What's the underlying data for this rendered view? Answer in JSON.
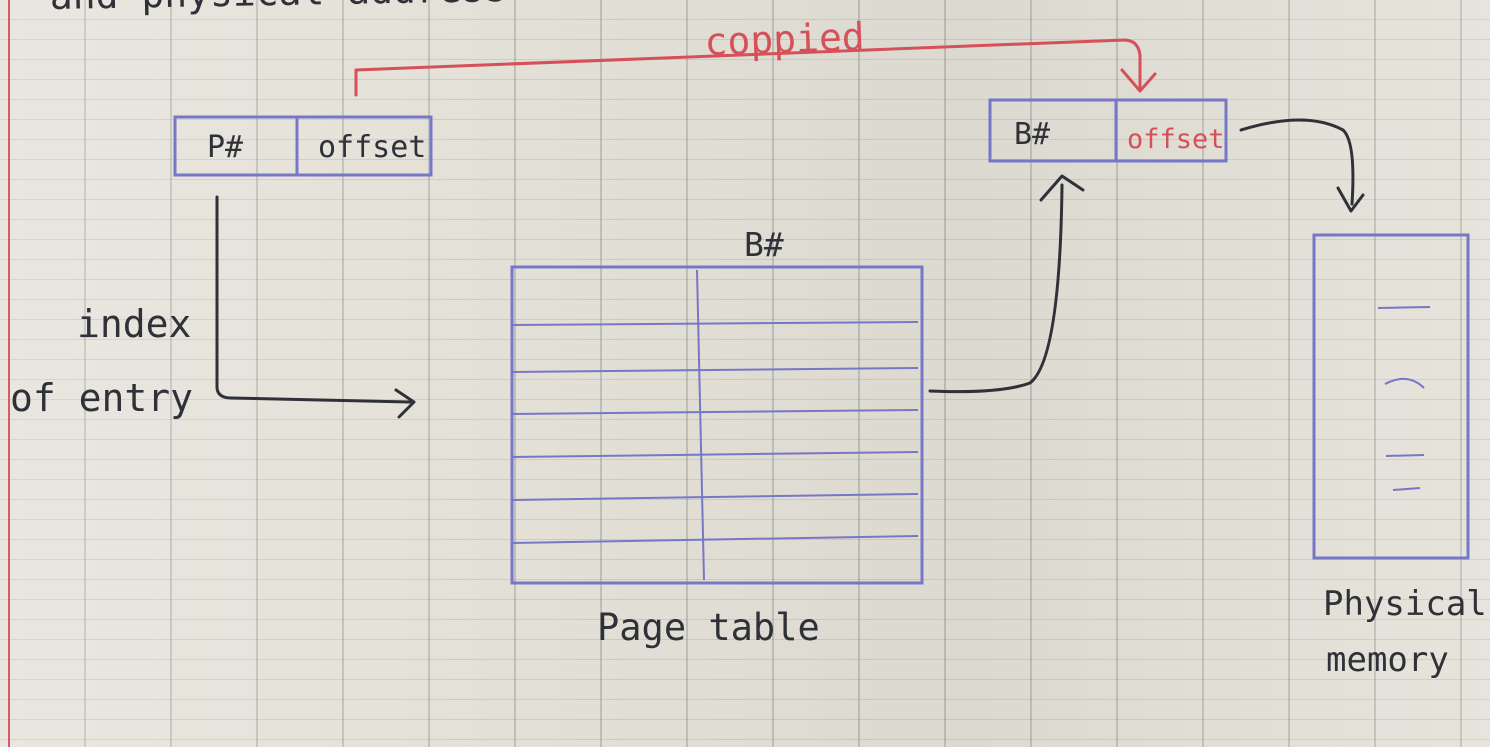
{
  "notes": {
    "top_fragment": "and physical address",
    "copied_label": "coppied",
    "logical_page": "P#",
    "logical_offset": "offset",
    "frame_number": "B#",
    "physical_offset": "offset",
    "frame_column_label": "B#",
    "index_line_1": "index",
    "index_line_2": "of entry",
    "page_table_label": "Page table",
    "physical_memory_line_1": "Physical",
    "physical_memory_line_2": "memory"
  },
  "colors": {
    "paper": "#e3e0d7",
    "ink": "#2f3138",
    "blue_ink": "#7777c8",
    "red_ink": "#d55058"
  }
}
